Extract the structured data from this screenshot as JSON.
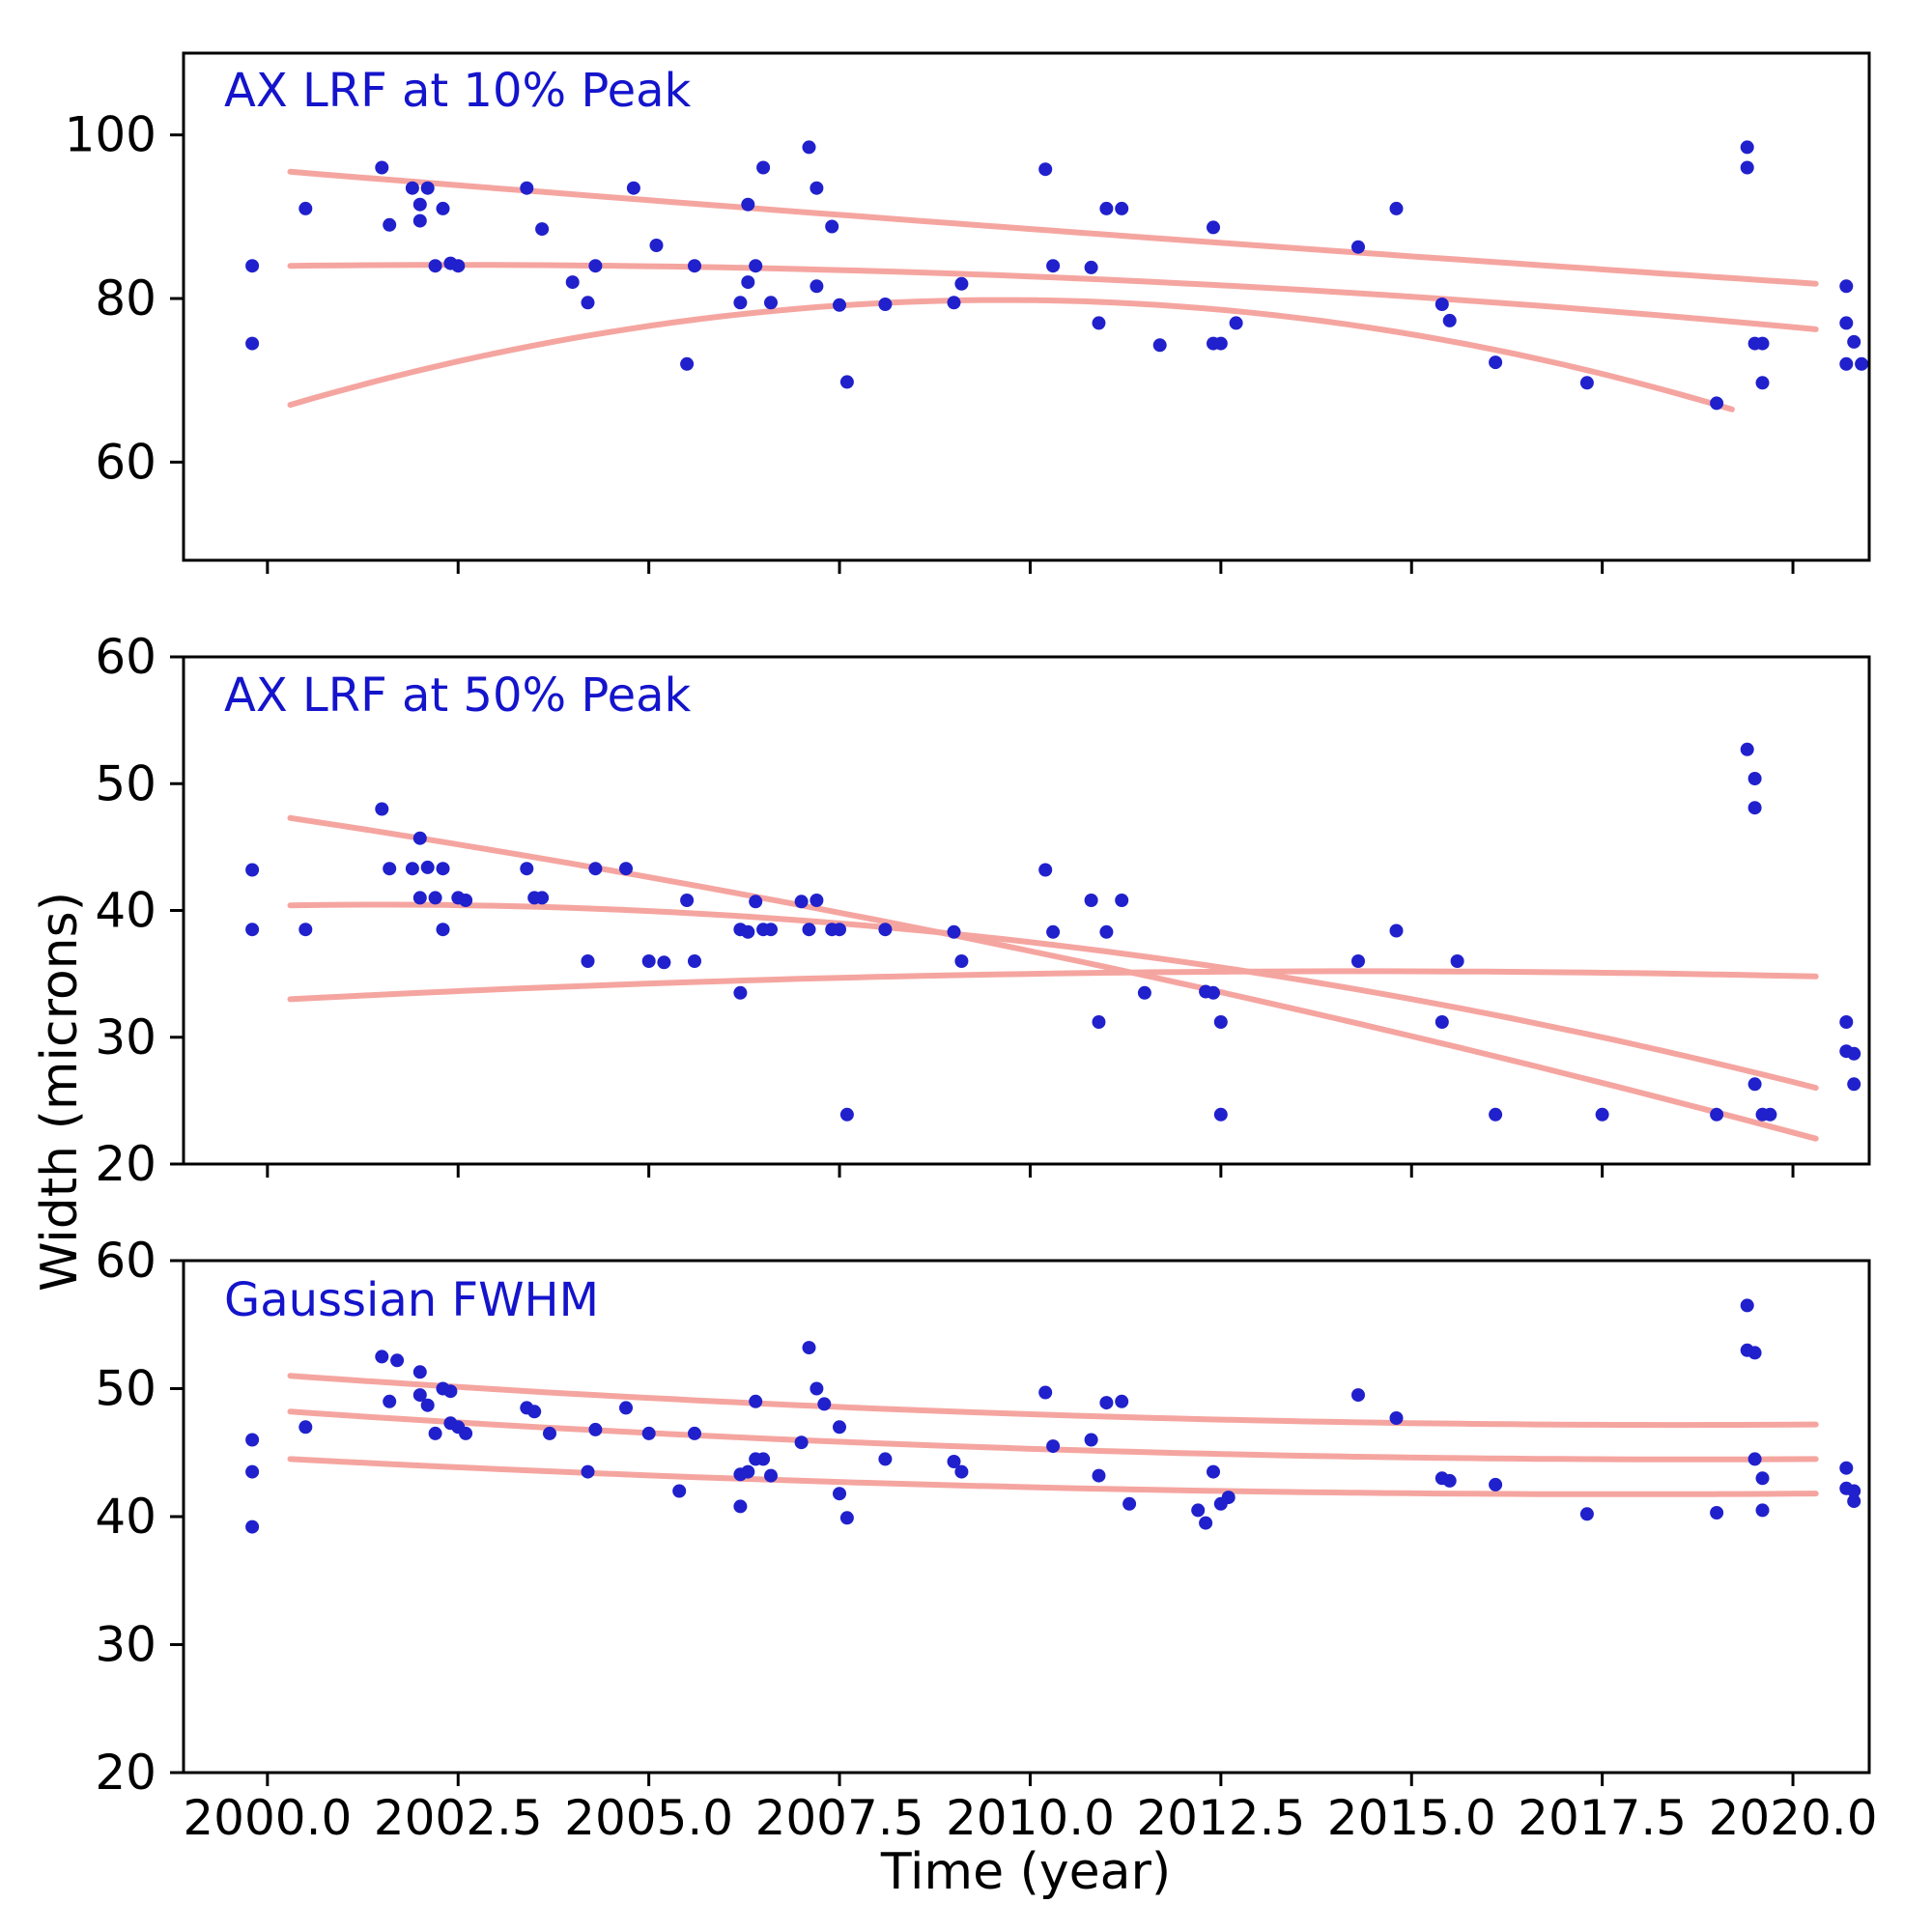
{
  "figure": {
    "background": "#ffffff",
    "axis_color": "#000000",
    "tick_label_color": "#000000"
  },
  "labels": {
    "ylabel": "Width (microns)",
    "xlabel": "Time (year)"
  },
  "axes": {
    "xlim": [
      1998.9,
      2021.0
    ],
    "xticks": [
      2000.0,
      2002.5,
      2005.0,
      2007.5,
      2010.0,
      2012.5,
      2015.0,
      2017.5,
      2020.0
    ],
    "xtick_labels": [
      "2000.0",
      "2002.5",
      "2005.0",
      "2007.5",
      "2010.0",
      "2012.5",
      "2015.0",
      "2017.5",
      "2020.0"
    ]
  },
  "chart_data": [
    {
      "type": "scatter",
      "title": "AX LRF at 10% Peak",
      "title_color": "#1414cc",
      "point_color": "#2020cc",
      "curve_color": "#f5a5a0",
      "xlabel": "Time (year)",
      "ylabel": "Width (microns)",
      "ylim": [
        48,
        110
      ],
      "yticks": [
        60,
        80,
        100
      ],
      "grid": false,
      "points": [
        [
          1999.8,
          84
        ],
        [
          1999.8,
          74.5
        ],
        [
          2000.5,
          91
        ],
        [
          2001.5,
          96
        ],
        [
          2001.6,
          89
        ],
        [
          2001.9,
          93.5
        ],
        [
          2002.0,
          91.5
        ],
        [
          2002.0,
          89.5
        ],
        [
          2002.1,
          93.5
        ],
        [
          2002.2,
          84
        ],
        [
          2002.3,
          91
        ],
        [
          2002.4,
          84.3
        ],
        [
          2002.5,
          84
        ],
        [
          2003.4,
          93.5
        ],
        [
          2003.6,
          88.5
        ],
        [
          2004.0,
          82
        ],
        [
          2004.2,
          79.5
        ],
        [
          2004.3,
          84
        ],
        [
          2004.8,
          93.5
        ],
        [
          2005.1,
          86.5
        ],
        [
          2005.5,
          72
        ],
        [
          2005.6,
          84
        ],
        [
          2006.2,
          79.5
        ],
        [
          2006.3,
          91.5
        ],
        [
          2006.3,
          82
        ],
        [
          2006.4,
          84
        ],
        [
          2006.5,
          96
        ],
        [
          2006.6,
          79.5
        ],
        [
          2007.1,
          98.5
        ],
        [
          2007.2,
          93.5
        ],
        [
          2007.2,
          81.5
        ],
        [
          2007.4,
          88.8
        ],
        [
          2007.5,
          79.2
        ],
        [
          2007.6,
          69.8
        ],
        [
          2008.1,
          79.3
        ],
        [
          2009.0,
          79.5
        ],
        [
          2009.1,
          81.8
        ],
        [
          2010.2,
          95.8
        ],
        [
          2010.3,
          84
        ],
        [
          2010.8,
          83.8
        ],
        [
          2010.9,
          77
        ],
        [
          2011.0,
          91
        ],
        [
          2011.2,
          91
        ],
        [
          2011.7,
          74.3
        ],
        [
          2012.4,
          88.7
        ],
        [
          2012.4,
          74.5
        ],
        [
          2012.5,
          74.5
        ],
        [
          2012.7,
          77
        ],
        [
          2014.3,
          86.3
        ],
        [
          2014.8,
          91
        ],
        [
          2015.4,
          79.3
        ],
        [
          2015.5,
          77.3
        ],
        [
          2016.1,
          72.2
        ],
        [
          2017.3,
          69.7
        ],
        [
          2019.0,
          67.2
        ],
        [
          2019.4,
          98.5
        ],
        [
          2019.4,
          96
        ],
        [
          2019.5,
          74.5
        ],
        [
          2019.6,
          74.5
        ],
        [
          2019.6,
          69.7
        ],
        [
          2020.7,
          81.5
        ],
        [
          2020.7,
          77
        ],
        [
          2020.8,
          74.7
        ],
        [
          2020.7,
          72
        ],
        [
          2020.9,
          72
        ]
      ],
      "fit_curves": [
        {
          "x_start": 2000.3,
          "x_end": 2020.3,
          "t0": 2010,
          "quad": [
            0.0036,
            -0.686,
            88.5
          ]
        },
        {
          "x_start": 2000.3,
          "x_end": 2020.3,
          "t0": 2010,
          "quad": [
            -0.0247,
            -0.373,
            82.7
          ]
        },
        {
          "x_start": 2000.3,
          "x_end": 2019.2,
          "t0": 2010,
          "quad": [
            -0.1466,
            -0.1026,
            79.8
          ]
        }
      ]
    },
    {
      "type": "scatter",
      "title": "AX LRF at 50% Peak",
      "title_color": "#1414cc",
      "point_color": "#2020cc",
      "curve_color": "#f5a5a0",
      "xlabel": "Time (year)",
      "ylabel": "Width (microns)",
      "ylim": [
        20,
        60
      ],
      "yticks": [
        20,
        30,
        40,
        50,
        60
      ],
      "grid": false,
      "points": [
        [
          1999.8,
          43.2
        ],
        [
          1999.8,
          38.5
        ],
        [
          2000.5,
          38.5
        ],
        [
          2001.5,
          48
        ],
        [
          2001.6,
          43.3
        ],
        [
          2001.9,
          43.3
        ],
        [
          2002.0,
          45.7
        ],
        [
          2002.0,
          41
        ],
        [
          2002.1,
          43.4
        ],
        [
          2002.2,
          41
        ],
        [
          2002.3,
          43.3
        ],
        [
          2002.3,
          38.5
        ],
        [
          2002.5,
          41
        ],
        [
          2002.6,
          40.8
        ],
        [
          2003.4,
          43.3
        ],
        [
          2003.5,
          41
        ],
        [
          2003.6,
          41
        ],
        [
          2004.2,
          36
        ],
        [
          2004.3,
          43.3
        ],
        [
          2004.7,
          43.3
        ],
        [
          2005.0,
          36
        ],
        [
          2005.2,
          35.9
        ],
        [
          2005.5,
          40.8
        ],
        [
          2005.6,
          36
        ],
        [
          2006.2,
          33.5
        ],
        [
          2006.2,
          38.5
        ],
        [
          2006.3,
          38.3
        ],
        [
          2006.4,
          40.7
        ],
        [
          2006.5,
          38.5
        ],
        [
          2006.6,
          38.5
        ],
        [
          2007.0,
          40.7
        ],
        [
          2007.1,
          38.5
        ],
        [
          2007.2,
          40.8
        ],
        [
          2007.4,
          38.5
        ],
        [
          2007.5,
          38.5
        ],
        [
          2007.6,
          23.9
        ],
        [
          2008.1,
          38.5
        ],
        [
          2009.0,
          38.3
        ],
        [
          2009.1,
          36
        ],
        [
          2010.2,
          43.2
        ],
        [
          2010.3,
          38.3
        ],
        [
          2010.8,
          40.8
        ],
        [
          2010.9,
          31.2
        ],
        [
          2011.0,
          38.3
        ],
        [
          2011.2,
          40.8
        ],
        [
          2011.5,
          33.5
        ],
        [
          2012.3,
          33.6
        ],
        [
          2012.4,
          33.5
        ],
        [
          2012.5,
          31.2
        ],
        [
          2012.5,
          23.9
        ],
        [
          2014.3,
          36
        ],
        [
          2014.8,
          38.4
        ],
        [
          2015.4,
          31.2
        ],
        [
          2015.6,
          36
        ],
        [
          2016.1,
          23.9
        ],
        [
          2017.5,
          23.9
        ],
        [
          2019.0,
          23.9
        ],
        [
          2019.4,
          52.7
        ],
        [
          2019.5,
          50.4
        ],
        [
          2019.5,
          48.1
        ],
        [
          2019.5,
          26.3
        ],
        [
          2019.6,
          23.9
        ],
        [
          2019.7,
          23.9
        ],
        [
          2020.7,
          31.2
        ],
        [
          2020.7,
          28.9
        ],
        [
          2020.8,
          28.7
        ],
        [
          2020.8,
          26.3
        ]
      ],
      "fit_curves": [
        {
          "x_start": 2000.3,
          "x_end": 2020.3,
          "t0": 2010,
          "quad": [
            -0.01775,
            -1.254,
            36.8
          ]
        },
        {
          "x_start": 2000.3,
          "x_end": 2020.3,
          "t0": 2010,
          "quad": [
            -0.0408,
            -0.695,
            37.5
          ]
        },
        {
          "x_start": 2000.3,
          "x_end": 2020.3,
          "t0": 2010,
          "quad": [
            -0.0113,
            0.0967,
            35.0
          ]
        }
      ]
    },
    {
      "type": "scatter",
      "title": "Gaussian FWHM",
      "title_color": "#1414cc",
      "point_color": "#2020cc",
      "curve_color": "#f5a5a0",
      "xlabel": "Time (year)",
      "ylabel": "Width (microns)",
      "ylim": [
        20,
        60
      ],
      "yticks": [
        20,
        30,
        40,
        50,
        60
      ],
      "grid": false,
      "points": [
        [
          1999.8,
          46
        ],
        [
          1999.8,
          43.5
        ],
        [
          1999.8,
          39.2
        ],
        [
          2000.5,
          47
        ],
        [
          2001.5,
          52.5
        ],
        [
          2001.6,
          49
        ],
        [
          2001.7,
          52.2
        ],
        [
          2002.0,
          51.3
        ],
        [
          2002.0,
          49.5
        ],
        [
          2002.1,
          48.7
        ],
        [
          2002.2,
          46.5
        ],
        [
          2002.3,
          50
        ],
        [
          2002.4,
          49.8
        ],
        [
          2002.4,
          47.3
        ],
        [
          2002.5,
          47
        ],
        [
          2002.6,
          46.5
        ],
        [
          2003.4,
          48.5
        ],
        [
          2003.5,
          48.2
        ],
        [
          2003.7,
          46.5
        ],
        [
          2004.2,
          43.5
        ],
        [
          2004.3,
          46.8
        ],
        [
          2004.7,
          48.5
        ],
        [
          2005.0,
          46.5
        ],
        [
          2005.4,
          42
        ],
        [
          2005.6,
          46.5
        ],
        [
          2006.2,
          43.3
        ],
        [
          2006.2,
          40.8
        ],
        [
          2006.3,
          43.5
        ],
        [
          2006.4,
          49
        ],
        [
          2006.4,
          44.5
        ],
        [
          2006.5,
          44.5
        ],
        [
          2006.6,
          43.2
        ],
        [
          2007.0,
          45.8
        ],
        [
          2007.1,
          53.2
        ],
        [
          2007.2,
          50
        ],
        [
          2007.3,
          48.8
        ],
        [
          2007.5,
          47
        ],
        [
          2007.5,
          41.8
        ],
        [
          2007.6,
          39.9
        ],
        [
          2008.1,
          44.5
        ],
        [
          2009.0,
          44.3
        ],
        [
          2009.1,
          43.5
        ],
        [
          2010.2,
          49.7
        ],
        [
          2010.3,
          45.5
        ],
        [
          2010.8,
          46
        ],
        [
          2010.9,
          43.2
        ],
        [
          2011.0,
          48.9
        ],
        [
          2011.2,
          49
        ],
        [
          2011.3,
          41
        ],
        [
          2012.2,
          40.5
        ],
        [
          2012.3,
          39.5
        ],
        [
          2012.4,
          43.5
        ],
        [
          2012.5,
          41
        ],
        [
          2012.6,
          41.5
        ],
        [
          2014.3,
          49.5
        ],
        [
          2014.8,
          47.7
        ],
        [
          2015.4,
          43
        ],
        [
          2015.5,
          42.8
        ],
        [
          2016.1,
          42.5
        ],
        [
          2017.3,
          40.2
        ],
        [
          2019.0,
          40.3
        ],
        [
          2019.4,
          56.5
        ],
        [
          2019.4,
          53
        ],
        [
          2019.5,
          52.8
        ],
        [
          2019.5,
          44.5
        ],
        [
          2019.6,
          43
        ],
        [
          2019.6,
          40.5
        ],
        [
          2020.7,
          43.8
        ],
        [
          2020.7,
          42.2
        ],
        [
          2020.8,
          42
        ],
        [
          2020.8,
          41.2
        ]
      ],
      "fit_curves": [
        {
          "x_start": 2000.3,
          "x_end": 2020.3,
          "t0": 2010,
          "quad": [
            0.0116,
            -0.197,
            48.0
          ]
        },
        {
          "x_start": 2000.3,
          "x_end": 2020.3,
          "t0": 2010,
          "quad": [
            0.01107,
            -0.1916,
            45.3
          ]
        },
        {
          "x_start": 2000.3,
          "x_end": 2020.3,
          "t0": 2010,
          "quad": [
            0.00892,
            -0.1403,
            42.3
          ]
        }
      ]
    }
  ]
}
